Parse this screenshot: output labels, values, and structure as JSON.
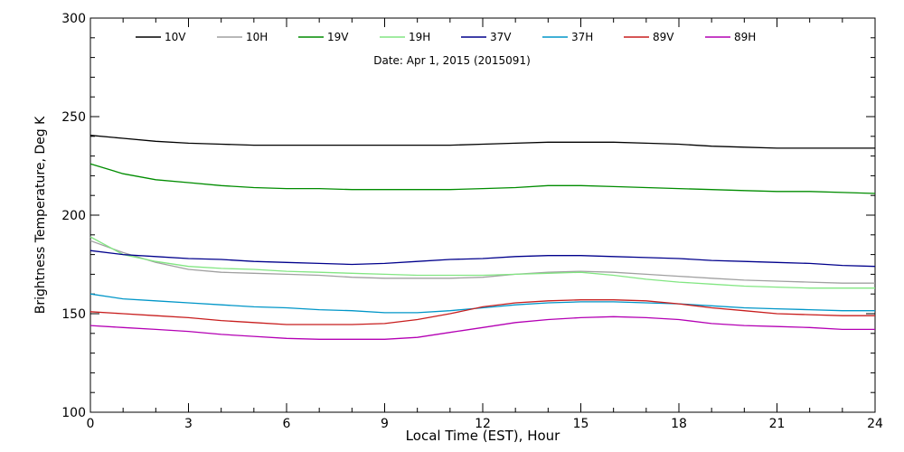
{
  "chart_data": {
    "type": "line",
    "title": "",
    "subtitle": "Date: Apr  1, 2015 (2015091)",
    "xlabel": "Local Time (EST), Hour",
    "ylabel": "Brightness Temperature, Deg K",
    "xlim": [
      0,
      24
    ],
    "ylim": [
      100,
      300
    ],
    "x_major_ticks": [
      0,
      3,
      6,
      9,
      12,
      15,
      18,
      21,
      24
    ],
    "x_minor_step": 1,
    "y_major_ticks": [
      100,
      150,
      200,
      250,
      300
    ],
    "y_minor_step": 10,
    "grid": false,
    "legend_position": "top",
    "x": [
      0,
      1,
      2,
      3,
      4,
      5,
      6,
      7,
      8,
      9,
      10,
      11,
      12,
      13,
      14,
      15,
      16,
      17,
      18,
      19,
      20,
      21,
      22,
      23,
      24
    ],
    "series": [
      {
        "name": "10V",
        "color": "#000000",
        "values": [
          240.5,
          239,
          237.5,
          236.5,
          236,
          235.5,
          235.5,
          235.5,
          235.5,
          235.5,
          235.5,
          235.5,
          236,
          236.5,
          237,
          237,
          237,
          236.5,
          236,
          235,
          234.5,
          234,
          234,
          234,
          234
        ]
      },
      {
        "name": "10H",
        "color": "#a0a0a0",
        "values": [
          187,
          181,
          176,
          172.5,
          171,
          170.5,
          170,
          169.5,
          168.5,
          168,
          168,
          168,
          168.5,
          170,
          171,
          171.5,
          171,
          170,
          169,
          168,
          167,
          166.5,
          166,
          165.5,
          165.5
        ]
      },
      {
        "name": "19V",
        "color": "#008c00",
        "values": [
          226,
          221,
          218,
          216.5,
          215,
          214,
          213.5,
          213.5,
          213,
          213,
          213,
          213,
          213.5,
          214,
          215,
          215,
          214.5,
          214,
          213.5,
          213,
          212.5,
          212,
          212,
          211.5,
          211
        ]
      },
      {
        "name": "19H",
        "color": "#82e682",
        "values": [
          189,
          180,
          176.5,
          174,
          173,
          172.5,
          171.5,
          171,
          170.5,
          170,
          169.5,
          169.5,
          169.5,
          170,
          170.5,
          171,
          169.5,
          167.5,
          166,
          165,
          164,
          163.5,
          163,
          163,
          163
        ]
      },
      {
        "name": "37V",
        "color": "#00008c",
        "values": [
          182,
          180,
          179,
          178,
          177.5,
          176.5,
          176,
          175.5,
          175,
          175.5,
          176.5,
          177.5,
          178,
          179,
          179.5,
          179.5,
          179,
          178.5,
          178,
          177,
          176.5,
          176,
          175.5,
          174.5,
          174
        ]
      },
      {
        "name": "37H",
        "color": "#0096c8",
        "values": [
          160,
          157.5,
          156.5,
          155.5,
          154.5,
          153.5,
          153,
          152,
          151.5,
          150.5,
          150.5,
          151.5,
          153,
          154.5,
          155.5,
          156,
          156,
          155.5,
          155,
          154,
          153,
          152.5,
          152,
          151.5,
          151.5
        ]
      },
      {
        "name": "89V",
        "color": "#c81e1e",
        "values": [
          151,
          150,
          149,
          148,
          146.5,
          145.5,
          144.5,
          144.5,
          144.5,
          145,
          147,
          150,
          153.5,
          155.5,
          156.5,
          157,
          157,
          156.5,
          155,
          153,
          151.5,
          150,
          149.5,
          149,
          149
        ]
      },
      {
        "name": "89H",
        "color": "#b400b4",
        "values": [
          144,
          143,
          142,
          141,
          139.5,
          138.5,
          137.5,
          137,
          137,
          137,
          138,
          140.5,
          143,
          145.5,
          147,
          148,
          148.5,
          148,
          147,
          145,
          144,
          143.5,
          143,
          142,
          142
        ]
      }
    ]
  }
}
